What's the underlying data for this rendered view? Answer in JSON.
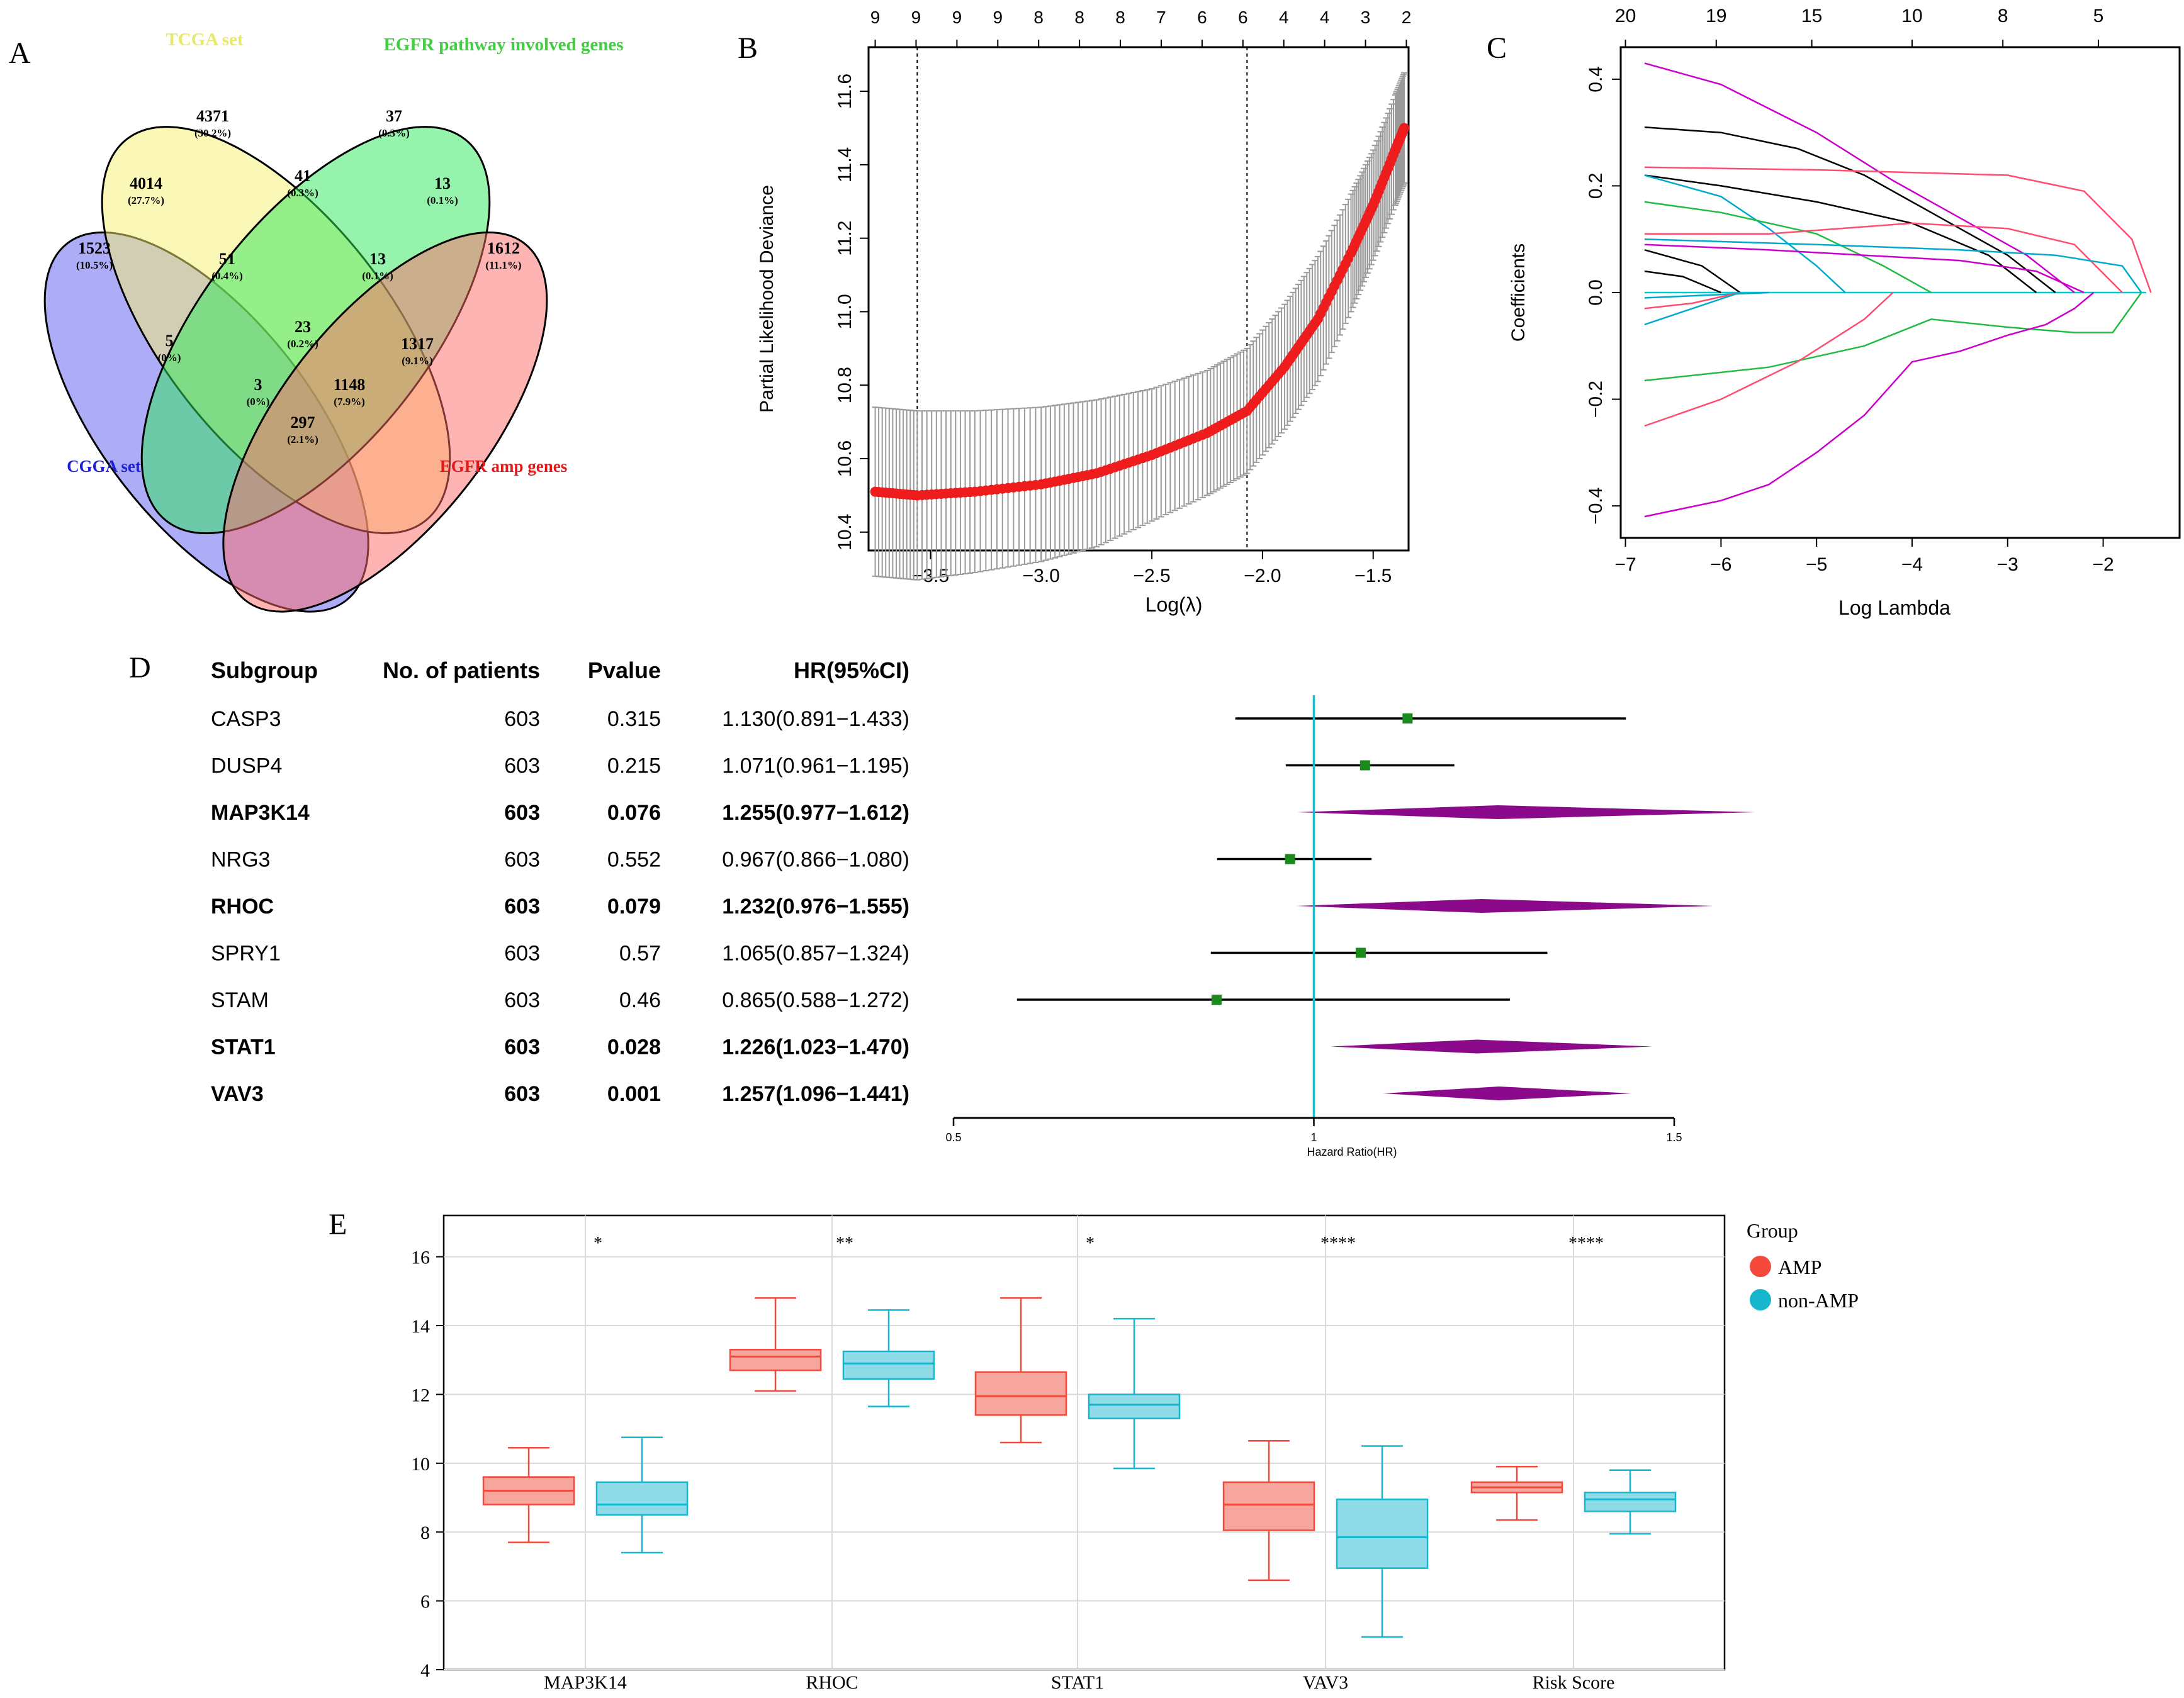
{
  "panels": {
    "A": "A",
    "B": "B",
    "C": "C",
    "D": "D",
    "E": "E"
  },
  "venn": {
    "sets": [
      {
        "label": "TCGA set",
        "color": "#e6e66a"
      },
      {
        "label": "EGFR pathway involved genes",
        "color": "#4dc94d"
      },
      {
        "label": "CGGA set",
        "color": "#1f1fd6"
      },
      {
        "label": "EGFR amp genes",
        "color": "#e01a1a"
      }
    ],
    "regions": [
      {
        "count": "4371",
        "pct": "(30.2%)"
      },
      {
        "count": "37",
        "pct": "(0.3%)"
      },
      {
        "count": "4014",
        "pct": "(27.7%)"
      },
      {
        "count": "41",
        "pct": "(0.3%)"
      },
      {
        "count": "13",
        "pct": "(0.1%)"
      },
      {
        "count": "1523",
        "pct": "(10.5%)"
      },
      {
        "count": "51",
        "pct": "(0.4%)"
      },
      {
        "count": "13",
        "pct": "(0.1%)"
      },
      {
        "count": "1612",
        "pct": "(11.1%)"
      },
      {
        "count": "23",
        "pct": "(0.2%)"
      },
      {
        "count": "5",
        "pct": "(0%)"
      },
      {
        "count": "1317",
        "pct": "(9.1%)"
      },
      {
        "count": "3",
        "pct": "(0%)"
      },
      {
        "count": "1148",
        "pct": "(7.9%)"
      },
      {
        "count": "297",
        "pct": "(2.1%)"
      }
    ]
  },
  "chart_data": [
    {
      "type": "line",
      "panel": "B",
      "xlabel": "Log(λ)",
      "ylabel": "Partial Likelihood Deviance",
      "xlim": [
        -3.78,
        -1.34
      ],
      "ylim": [
        10.35,
        11.72
      ],
      "xticks": [
        -3.5,
        -3.0,
        -2.5,
        -2.0,
        -1.5
      ],
      "xtick_labels": [
        "−3.5",
        "−3.0",
        "−2.5",
        "−2.0",
        "−1.5"
      ],
      "yticks": [
        10.4,
        10.6,
        10.8,
        11.0,
        11.2,
        11.4,
        11.6
      ],
      "ytick_labels": [
        "10.4",
        "10.6",
        "10.8",
        "11.0",
        "11.2",
        "11.4",
        "11.6"
      ],
      "top_counts": [
        "9",
        "9",
        "9",
        "9",
        "8",
        "8",
        "8",
        "7",
        "6",
        "6",
        "4",
        "4",
        "3",
        "2"
      ],
      "vlines": [
        -3.56,
        -2.07
      ],
      "curve": {
        "x": [
          -3.75,
          -3.56,
          -3.3,
          -3.0,
          -2.75,
          -2.5,
          -2.25,
          -2.07,
          -1.9,
          -1.75,
          -1.6,
          -1.5,
          -1.4,
          -1.36
        ],
        "y": [
          10.51,
          10.5,
          10.51,
          10.53,
          10.56,
          10.61,
          10.67,
          10.73,
          10.85,
          10.98,
          11.16,
          11.29,
          11.44,
          11.5
        ],
        "err": [
          0.23,
          0.23,
          0.22,
          0.21,
          0.2,
          0.18,
          0.17,
          0.17,
          0.17,
          0.17,
          0.16,
          0.15,
          0.15,
          0.15
        ]
      }
    },
    {
      "type": "line",
      "panel": "C",
      "xlabel": "Log Lambda",
      "ylabel": "Coefficients",
      "xlim": [
        -7.05,
        -1.2
      ],
      "ylim": [
        -0.46,
        0.46
      ],
      "xticks": [
        -7,
        -6,
        -5,
        -4,
        -3,
        -2
      ],
      "xtick_labels": [
        "−7",
        "−6",
        "−5",
        "−4",
        "−3",
        "−2"
      ],
      "yticks": [
        -0.4,
        -0.2,
        0.0,
        0.2,
        0.4
      ],
      "ytick_labels": [
        "−0.4",
        "−0.2",
        "0.0",
        "0.2",
        "0.4"
      ],
      "top_labels": [
        "20",
        "19",
        "15",
        "10",
        "8",
        "5"
      ],
      "top_positions": [
        -7.0,
        -6.05,
        -5.05,
        -4.0,
        -3.05,
        -2.05
      ],
      "series": [
        {
          "color": "#cc00cc",
          "x": [
            -6.8,
            -6.0,
            -5.0,
            -4.2,
            -3.5,
            -2.8,
            -2.3
          ],
          "y": [
            0.43,
            0.39,
            0.3,
            0.21,
            0.14,
            0.07,
            0.0
          ]
        },
        {
          "color": "#000000",
          "x": [
            -6.8,
            -6.0,
            -5.2,
            -4.5,
            -3.8,
            -3.0,
            -2.5
          ],
          "y": [
            0.31,
            0.3,
            0.27,
            0.22,
            0.15,
            0.07,
            0.0
          ]
        },
        {
          "color": "#ff4d70",
          "x": [
            -6.8,
            -5.0,
            -3.0,
            -2.2,
            -1.7,
            -1.5
          ],
          "y": [
            0.235,
            0.23,
            0.22,
            0.19,
            0.1,
            0.0
          ]
        },
        {
          "color": "#000000",
          "x": [
            -6.8,
            -6.0,
            -5.0,
            -4.0,
            -3.2,
            -2.7
          ],
          "y": [
            0.22,
            0.2,
            0.17,
            0.13,
            0.07,
            0.0
          ]
        },
        {
          "color": "#00aacc",
          "x": [
            -6.8,
            -6.0,
            -5.5,
            -5.0,
            -4.7
          ],
          "y": [
            0.22,
            0.18,
            0.12,
            0.05,
            0.0
          ]
        },
        {
          "color": "#22bb44",
          "x": [
            -6.8,
            -6.0,
            -5.0,
            -4.3,
            -3.8
          ],
          "y": [
            0.17,
            0.15,
            0.11,
            0.05,
            0.0
          ]
        },
        {
          "color": "#ff4d70",
          "x": [
            -6.8,
            -5.5,
            -4.0,
            -3.0,
            -2.3,
            -1.8
          ],
          "y": [
            0.11,
            0.11,
            0.13,
            0.12,
            0.09,
            0.0
          ]
        },
        {
          "color": "#00aacc",
          "x": [
            -6.8,
            -5.0,
            -3.5,
            -2.5,
            -1.8,
            -1.6
          ],
          "y": [
            0.1,
            0.09,
            0.08,
            0.07,
            0.05,
            0.0
          ]
        },
        {
          "color": "#cc00cc",
          "x": [
            -6.8,
            -5.5,
            -4.5,
            -3.5,
            -2.7,
            -2.2
          ],
          "y": [
            0.09,
            0.08,
            0.07,
            0.06,
            0.04,
            0.0
          ]
        },
        {
          "color": "#000000",
          "x": [
            -6.8,
            -6.2,
            -5.8
          ],
          "y": [
            0.08,
            0.05,
            0.0
          ]
        },
        {
          "color": "#000000",
          "x": [
            -6.8,
            -6.4,
            -6.0
          ],
          "y": [
            0.04,
            0.03,
            0.0
          ]
        },
        {
          "color": "#00aacc",
          "x": [
            -6.8,
            -5.5
          ],
          "y": [
            -0.01,
            0.0
          ]
        },
        {
          "color": "#ff4d70",
          "x": [
            -6.8,
            -6.3,
            -5.8
          ],
          "y": [
            -0.03,
            -0.02,
            0.0
          ]
        },
        {
          "color": "#00aacc",
          "x": [
            -6.8,
            -6.3,
            -5.8
          ],
          "y": [
            -0.06,
            -0.03,
            0.0
          ]
        },
        {
          "color": "#22bb44",
          "x": [
            -6.8,
            -5.5,
            -4.5,
            -3.8,
            -3.0,
            -2.3,
            -1.9,
            -1.6
          ],
          "y": [
            -0.165,
            -0.14,
            -0.1,
            -0.05,
            -0.065,
            -0.075,
            -0.075,
            0.0
          ]
        },
        {
          "color": "#ff4d70",
          "x": [
            -6.8,
            -6.0,
            -5.2,
            -4.5,
            -4.2
          ],
          "y": [
            -0.25,
            -0.2,
            -0.13,
            -0.05,
            0.0
          ]
        },
        {
          "color": "#cc00cc",
          "x": [
            -6.8,
            -6.0,
            -5.5,
            -5.0,
            -4.5,
            -4.0,
            -3.5,
            -3.0,
            -2.6,
            -2.3,
            -2.1
          ],
          "y": [
            -0.42,
            -0.39,
            -0.36,
            -0.3,
            -0.23,
            -0.13,
            -0.11,
            -0.08,
            -0.06,
            -0.03,
            0.0
          ]
        }
      ]
    },
    {
      "type": "table",
      "panel": "D",
      "headers": [
        "Subgroup",
        "No. of patients",
        "Pvalue",
        "HR(95%CI)"
      ],
      "rows": [
        {
          "name": "CASP3",
          "n": "603",
          "p": "0.315",
          "hr": "1.130(0.891−1.433)",
          "bold": false,
          "est": 1.13,
          "lo": 0.891,
          "hi": 1.433,
          "mark": "square"
        },
        {
          "name": "DUSP4",
          "n": "603",
          "p": "0.215",
          "hr": "1.071(0.961−1.195)",
          "bold": false,
          "est": 1.071,
          "lo": 0.961,
          "hi": 1.195,
          "mark": "square"
        },
        {
          "name": "MAP3K14",
          "n": "603",
          "p": "0.076",
          "hr": "1.255(0.977−1.612)",
          "bold": true,
          "est": 1.255,
          "lo": 0.977,
          "hi": 1.612,
          "mark": "diamond"
        },
        {
          "name": "NRG3",
          "n": "603",
          "p": "0.552",
          "hr": "0.967(0.866−1.080)",
          "bold": false,
          "est": 0.967,
          "lo": 0.866,
          "hi": 1.08,
          "mark": "square"
        },
        {
          "name": "RHOC",
          "n": "603",
          "p": "0.079",
          "hr": "1.232(0.976−1.555)",
          "bold": true,
          "est": 1.232,
          "lo": 0.976,
          "hi": 1.555,
          "mark": "diamond"
        },
        {
          "name": "SPRY1",
          "n": "603",
          "p": "0.57",
          "hr": "1.065(0.857−1.324)",
          "bold": false,
          "est": 1.065,
          "lo": 0.857,
          "hi": 1.324,
          "mark": "square"
        },
        {
          "name": "STAM",
          "n": "603",
          "p": "0.46",
          "hr": "0.865(0.588−1.272)",
          "bold": false,
          "est": 0.865,
          "lo": 0.588,
          "hi": 1.272,
          "mark": "square"
        },
        {
          "name": "STAT1",
          "n": "603",
          "p": "0.028",
          "hr": "1.226(1.023−1.470)",
          "bold": true,
          "est": 1.226,
          "lo": 1.023,
          "hi": 1.47,
          "mark": "diamond"
        },
        {
          "name": "VAV3",
          "n": "603",
          "p": "0.001",
          "hr": "1.257(1.096−1.441)",
          "bold": true,
          "est": 1.257,
          "lo": 1.096,
          "hi": 1.441,
          "mark": "diamond"
        }
      ],
      "xlim": [
        0.5,
        1.5
      ],
      "xticks": [
        "0.5",
        "1",
        "1.5"
      ],
      "xlabel": "Hazard Ratio(HR)",
      "ref": 1
    },
    {
      "type": "box",
      "panel": "E",
      "categories": [
        "MAP3K14",
        "RHOC",
        "STAT1",
        "VAV3",
        "Risk Score"
      ],
      "ylim": [
        4,
        17.2
      ],
      "yticks": [
        "4",
        "6",
        "8",
        "10",
        "12",
        "14",
        "16"
      ],
      "legend_title": "Group",
      "series": [
        {
          "name": "AMP",
          "color": "#f5493c",
          "boxes": [
            {
              "min": 7.7,
              "q1": 8.8,
              "med": 9.2,
              "q3": 9.6,
              "max": 10.45
            },
            {
              "min": 12.1,
              "q1": 12.7,
              "med": 13.1,
              "q3": 13.3,
              "max": 14.8
            },
            {
              "min": 10.6,
              "q1": 11.4,
              "med": 11.95,
              "q3": 12.65,
              "max": 14.8
            },
            {
              "min": 6.6,
              "q1": 8.05,
              "med": 8.8,
              "q3": 9.45,
              "max": 10.65
            },
            {
              "min": 8.35,
              "q1": 9.15,
              "med": 9.3,
              "q3": 9.45,
              "max": 9.9
            }
          ]
        },
        {
          "name": "non-AMP",
          "color": "#17b6cf",
          "boxes": [
            {
              "min": 7.4,
              "q1": 8.5,
              "med": 8.8,
              "q3": 9.45,
              "max": 10.75
            },
            {
              "min": 11.65,
              "q1": 12.45,
              "med": 12.9,
              "q3": 13.25,
              "max": 14.45
            },
            {
              "min": 9.85,
              "q1": 11.3,
              "med": 11.7,
              "q3": 12.0,
              "max": 14.2
            },
            {
              "min": 4.95,
              "q1": 6.95,
              "med": 7.85,
              "q3": 8.95,
              "max": 10.5
            },
            {
              "min": 7.95,
              "q1": 8.6,
              "med": 8.95,
              "q3": 9.15,
              "max": 9.8
            }
          ]
        }
      ],
      "significance": [
        "*",
        "**",
        "*",
        "****",
        "****"
      ]
    }
  ]
}
